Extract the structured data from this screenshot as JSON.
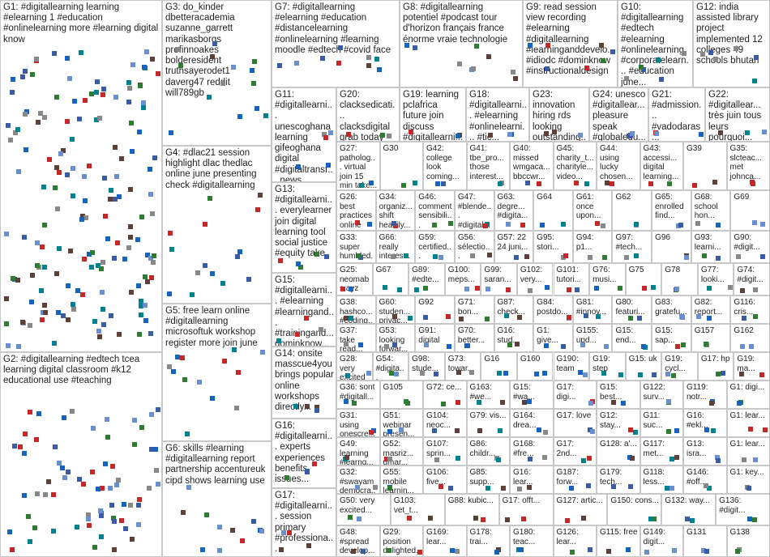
{
  "groups": [
    {
      "label": "G1: #digitallearning learning #elearning 1 #education #onlinelearning more #learning digital know"
    },
    {
      "label": "G2: #digitallearning #edtech tcea learning digital classroom #k12 educational use #teaching"
    },
    {
      "label": "G3: do_kinder dbetteracademia suzanne_garrett marikasborgs profinnoakes bolderesident truthsayerodet1 daverg47 reddit will789gb"
    },
    {
      "label": "G4: #dlac21 session highlight dlac thedlac online june presenting check #digitallearning"
    },
    {
      "label": "G5: free learn online #digitallearning microsoftuk workshop register more join june"
    },
    {
      "label": "G6: skills #learning #digitallearning report partnership accentureuk cipd shows learning use"
    },
    {
      "label": "G7: #digitallearning #elearning #education #distancelearning #onlinelearning #learning moodle #edtech #covid face"
    },
    {
      "label": "G8: #digitallearning potentiel #podcast tour d'horizon français france énorme vraie technologie"
    },
    {
      "label": "G9: read session view recording #elearning #digitallearning #learninganddevelo... #idiodc #dominknow #instructionaldesign"
    },
    {
      "label": "G10: #digitallearning #edtech #elearning #onlinelearning #corporatelearn... #education june..."
    },
    {
      "label": "G12: india assisted library project implemented 12 colleges 49 schools bhutan"
    },
    {
      "label": "G11: #digitallearni... unescoghana learning gifeoghana digital #digitaltransf... news..."
    },
    {
      "label": "G20: clacksedicati... clacksdigital grab today hop call look..."
    },
    {
      "label": "G19: learning pclafrica future join discuss #digitallearni... today digital..."
    },
    {
      "label": "G18: #digitallearni... #elearning #onlinelearni... #tic..."
    },
    {
      "label": "G23: innovation hiring rds looking outstanding..."
    },
    {
      "label": "G24: unesco #digitallear... pleasure speak #globaledu..."
    },
    {
      "label": "G21: #admission... #vadodaras... #onlineclas... environmen..."
    },
    {
      "label": "G22: #digitallear... très juin tous leurs pourquoi..."
    },
    {
      "label": "G13: #digitallearni... everylearner join digital learning tool social justice #equity take"
    },
    {
      "label": "G15: #digitallearni... #elearning #learningand... #trainingand... dominknow..."
    },
    {
      "label": "G14: onsite masscue4you brings popular online workshops directly..."
    },
    {
      "label": "G16: #digitallearni... experts experiences benefits issues..."
    },
    {
      "label": "G17: #digitallearni... session primary #professiona..."
    }
  ],
  "rows": [
    [
      {
        "label": "G27: patholog... virtual join 15 min take..."
      },
      {
        "label": "G30"
      },
      {
        "label": "G42: college look coming..."
      },
      {
        "label": "G41: tbe_pro... those interest..."
      },
      {
        "label": "G40: missed wmgaca... bbccwr..."
      },
      {
        "label": "G45: charity_t... charityle... video..."
      },
      {
        "label": "G44: using lucky chosen..."
      },
      {
        "label": "G43: accessi... digital learning..."
      },
      {
        "label": "G39"
      },
      {
        "label": "G35: slcteac... met johnca..."
      }
    ],
    [
      {
        "label": "G26: best practices online learning..."
      },
      {
        "label": "G34: organiz... shift heavily..."
      },
      {
        "label": "G46: comment sensibili..."
      },
      {
        "label": "G47: #blende... #digitale..."
      },
      {
        "label": "G63: degre... #digita..."
      },
      {
        "label": "G64"
      },
      {
        "label": "G61: once upon..."
      },
      {
        "label": "G62"
      },
      {
        "label": "G65: enrolled find..."
      },
      {
        "label": "G68: school hon..."
      },
      {
        "label": "G69"
      }
    ],
    [
      {
        "label": "G33: super humbled..."
      },
      {
        "label": "G66: really interes..."
      },
      {
        "label": "G59: certified..."
      },
      {
        "label": "G56: sélectio..."
      },
      {
        "label": "G57: 22 24 juni..."
      },
      {
        "label": "G95: stori..."
      },
      {
        "label": "G94: p1..."
      },
      {
        "label": "G97: #tech..."
      },
      {
        "label": "G96"
      },
      {
        "label": "G93: learni..."
      },
      {
        "label": "G90: #digit..."
      }
    ],
    [
      {
        "label": "G25: neomabs ayz #campus..."
      },
      {
        "label": "G67"
      },
      {
        "label": "G89: #edte..."
      },
      {
        "label": "G100: meps..."
      },
      {
        "label": "G99: saran..."
      },
      {
        "label": "G102: very..."
      },
      {
        "label": "G101: tutori..."
      },
      {
        "label": "G76: musi..."
      },
      {
        "label": "G75"
      },
      {
        "label": "G78"
      },
      {
        "label": "G77: looki..."
      },
      {
        "label": "G74: #digit..."
      }
    ],
    [
      {
        "label": "G38: hashco... #coding..."
      },
      {
        "label": "G60: studen... privac..."
      },
      {
        "label": "G92"
      },
      {
        "label": "G71: bon..."
      },
      {
        "label": "G87: check..."
      },
      {
        "label": "G84: postdo..."
      },
      {
        "label": "G81: #innov..."
      },
      {
        "label": "G80: featuri..."
      },
      {
        "label": "G83: gratefu..."
      },
      {
        "label": "G82: report..."
      },
      {
        "label": "G116: cris..."
      }
    ],
    [
      {
        "label": "G37: take read..."
      },
      {
        "label": "G53: looking forwar..."
      },
      {
        "label": "G91: digital"
      },
      {
        "label": "G70: better..."
      },
      {
        "label": "G16: stud..."
      },
      {
        "label": "G1: give..."
      },
      {
        "label": "G155: upd..."
      },
      {
        "label": "G15: end..."
      },
      {
        "label": "G15: sap..."
      },
      {
        "label": "G157"
      },
      {
        "label": "G162"
      }
    ],
    [
      {
        "label": "G28: very excited see..."
      },
      {
        "label": "G54: #digita..."
      },
      {
        "label": "G98: stude..."
      },
      {
        "label": "G73: towar..."
      },
      {
        "label": "G16"
      },
      {
        "label": "G160"
      },
      {
        "label": "G190: team"
      },
      {
        "label": "G19: step"
      },
      {
        "label": "G15: uk"
      },
      {
        "label": "G19: cycl..."
      },
      {
        "label": "G17: hp"
      },
      {
        "label": "G19: ma..."
      }
    ],
    [
      {
        "label": "G36: sont #digitall..."
      },
      {
        "label": "G105"
      },
      {
        "label": "G72: ce..."
      },
      {
        "label": "G163: #we..."
      },
      {
        "label": "G15: #wa..."
      },
      {
        "label": "G17: digi..."
      },
      {
        "label": "G15: best..."
      },
      {
        "label": "G122: surv..."
      },
      {
        "label": "G119: notr..."
      },
      {
        "label": "G1: digi..."
      }
    ],
    [
      {
        "label": "G31: using onescre..."
      },
      {
        "label": "G51: webinar presen..."
      },
      {
        "label": "G104: neoc..."
      },
      {
        "label": "G79: vis..."
      },
      {
        "label": "G164: drea..."
      },
      {
        "label": "G17: love"
      },
      {
        "label": "G12: stay..."
      },
      {
        "label": "G11: suc..."
      },
      {
        "label": "G16: #ekl..."
      },
      {
        "label": "G1: lear..."
      }
    ],
    [
      {
        "label": "G49: learning #learng..."
      },
      {
        "label": "G52: masriz... umar..."
      },
      {
        "label": "G107: sprin..."
      },
      {
        "label": "G86: childr..."
      },
      {
        "label": "G168: #fre..."
      },
      {
        "label": "G17: 2nd..."
      },
      {
        "label": "G128: a'..."
      },
      {
        "label": "G117: met..."
      },
      {
        "label": "G13: isra..."
      },
      {
        "label": "G1: lear..."
      }
    ],
    [
      {
        "label": "G32: #swayam democra..."
      },
      {
        "label": "G55: mobile learnin..."
      },
      {
        "label": "G106: five..."
      },
      {
        "label": "G85: supp..."
      },
      {
        "label": "G16: lear..."
      },
      {
        "label": "G187: forw..."
      },
      {
        "label": "G179: tech..."
      },
      {
        "label": "G118: less..."
      },
      {
        "label": "G146: #off..."
      },
      {
        "label": "G1: key..."
      }
    ],
    [
      {
        "label": "G50: very excited..."
      },
      {
        "label": "G103: vet_t..."
      },
      {
        "label": "G88: kubic..."
      },
      {
        "label": "G17: offt..."
      },
      {
        "label": "G127: artic..."
      },
      {
        "label": "G150: cons..."
      },
      {
        "label": "G132: way..."
      },
      {
        "label": "G136: #digit..."
      }
    ],
    [
      {
        "label": "G48: #spread develop..."
      },
      {
        "label": "G29: position delighted..."
      },
      {
        "label": "G169: lear..."
      },
      {
        "label": "G178: trai..."
      },
      {
        "label": "G180: teac..."
      },
      {
        "label": "G126: lear..."
      },
      {
        "label": "G115: free"
      },
      {
        "label": "G149: digit..."
      },
      {
        "label": "G131"
      },
      {
        "label": "G138"
      }
    ]
  ]
}
